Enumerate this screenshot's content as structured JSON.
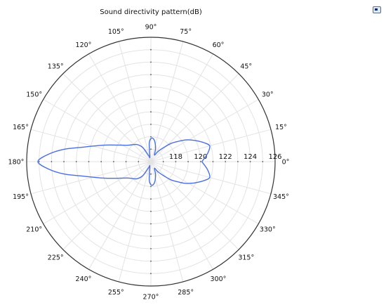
{
  "toolbar": {
    "icon": "window-restore-icon"
  },
  "chart_data": {
    "type": "polar",
    "title": "Sound directivity pattern(dB)",
    "angle_ticks": [
      "0°",
      "15°",
      "30°",
      "45°",
      "60°",
      "75°",
      "90°",
      "105°",
      "120°",
      "135°",
      "150°",
      "165°",
      "180°",
      "195°",
      "210°",
      "225°",
      "240°",
      "255°",
      "270°",
      "285°",
      "300°",
      "315°",
      "330°",
      "345°"
    ],
    "radial_axis": {
      "min": 116,
      "max": 126,
      "ticks": [
        118,
        120,
        122,
        124,
        126
      ]
    },
    "grid": true,
    "series": [
      {
        "color": "#4a6fe3",
        "theta_deg": [
          0,
          8,
          15,
          20,
          25,
          28,
          32,
          36,
          42,
          48,
          55,
          62,
          70,
          80,
          88,
          95,
          102,
          110,
          120,
          130,
          145,
          160,
          168,
          172,
          176,
          180
        ],
        "r": [
          120.1,
          120.6,
          120.9,
          120.5,
          120.0,
          119.7,
          119.3,
          118.8,
          118.2,
          117.5,
          117.0,
          116.6,
          117.1,
          117.7,
          117.9,
          117.5,
          116.4,
          116.5,
          117.3,
          117.8,
          118.3,
          119.9,
          121.6,
          123.1,
          124.3,
          125.1
        ]
      }
    ]
  }
}
